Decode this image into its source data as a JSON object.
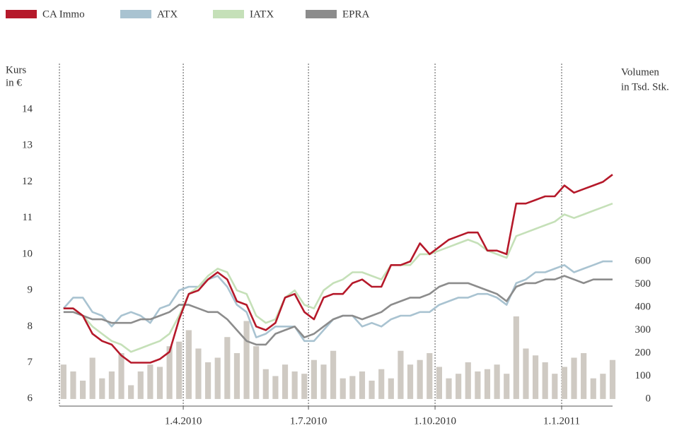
{
  "chart_data": {
    "type": "line",
    "ylabel": [
      "Kurs",
      "in €"
    ],
    "y2label": [
      "Volumen",
      "in Tsd. Stk."
    ],
    "xlim": [
      "2010-01-01",
      "2011-02-07"
    ],
    "xticks": [
      {
        "value": "2010-04-01",
        "label": "1.4.2010"
      },
      {
        "value": "2010-07-01",
        "label": "1.7.2010"
      },
      {
        "value": "2010-10-01",
        "label": "1.10.2010"
      },
      {
        "value": "2011-01-01",
        "label": "1.1.2011"
      }
    ],
    "ylim": [
      5.8,
      15.27
    ],
    "yticks": [
      6,
      7,
      8,
      9,
      10,
      11,
      12,
      13,
      14
    ],
    "y2lim": [
      -31,
      1462
    ],
    "y2ticks": [
      0,
      100,
      200,
      300,
      400,
      500,
      600
    ],
    "grid": true,
    "legend": "top-left",
    "x": [
      "2010-01-04",
      "2010-01-11",
      "2010-01-18",
      "2010-01-25",
      "2010-02-01",
      "2010-02-08",
      "2010-02-15",
      "2010-02-22",
      "2010-03-01",
      "2010-03-08",
      "2010-03-15",
      "2010-03-22",
      "2010-03-29",
      "2010-04-05",
      "2010-04-12",
      "2010-04-19",
      "2010-04-26",
      "2010-05-03",
      "2010-05-10",
      "2010-05-17",
      "2010-05-24",
      "2010-05-31",
      "2010-06-07",
      "2010-06-14",
      "2010-06-21",
      "2010-06-28",
      "2010-07-05",
      "2010-07-12",
      "2010-07-19",
      "2010-07-26",
      "2010-08-02",
      "2010-08-09",
      "2010-08-16",
      "2010-08-23",
      "2010-08-30",
      "2010-09-06",
      "2010-09-13",
      "2010-09-20",
      "2010-09-27",
      "2010-10-04",
      "2010-10-11",
      "2010-10-18",
      "2010-10-25",
      "2010-11-01",
      "2010-11-08",
      "2010-11-15",
      "2010-11-22",
      "2010-11-29",
      "2010-12-06",
      "2010-12-13",
      "2010-12-20",
      "2010-12-27",
      "2011-01-03",
      "2011-01-10",
      "2011-01-17",
      "2011-01-24",
      "2011-01-31",
      "2011-02-07"
    ],
    "series": [
      {
        "name": "Volumen",
        "type": "bar",
        "axis": "y2",
        "color": "#cfcac3",
        "values": [
          150,
          120,
          80,
          180,
          90,
          120,
          200,
          60,
          120,
          150,
          140,
          230,
          250,
          300,
          220,
          160,
          180,
          270,
          200,
          340,
          230,
          130,
          100,
          150,
          120,
          110,
          170,
          150,
          210,
          90,
          100,
          120,
          80,
          130,
          90,
          210,
          150,
          170,
          200,
          140,
          90,
          110,
          160,
          120,
          130,
          150,
          110,
          360,
          220,
          190,
          160,
          110,
          140,
          180,
          200,
          90,
          110,
          170
        ]
      },
      {
        "name": "ATX",
        "color": "#a9c3d1",
        "values": [
          8.5,
          8.8,
          8.8,
          8.4,
          8.3,
          8.0,
          8.3,
          8.4,
          8.3,
          8.1,
          8.5,
          8.6,
          9.0,
          9.1,
          9.1,
          9.3,
          9.4,
          9.1,
          8.6,
          8.4,
          7.7,
          7.8,
          8.0,
          8.0,
          8.0,
          7.6,
          7.6,
          7.9,
          8.2,
          8.3,
          8.3,
          8.0,
          8.1,
          8.0,
          8.2,
          8.3,
          8.3,
          8.4,
          8.4,
          8.6,
          8.7,
          8.8,
          8.8,
          8.9,
          8.9,
          8.8,
          8.6,
          9.2,
          9.3,
          9.5,
          9.5,
          9.6,
          9.7,
          9.5,
          9.6,
          9.7,
          9.8,
          9.8
        ]
      },
      {
        "name": "IATX",
        "color": "#c5e0b8",
        "values": [
          8.5,
          8.5,
          8.3,
          8.0,
          7.8,
          7.6,
          7.5,
          7.3,
          7.4,
          7.5,
          7.6,
          7.8,
          8.3,
          8.9,
          9.1,
          9.4,
          9.6,
          9.5,
          9.0,
          8.9,
          8.3,
          8.1,
          8.2,
          8.8,
          9.0,
          8.6,
          8.5,
          9.0,
          9.2,
          9.3,
          9.5,
          9.5,
          9.4,
          9.3,
          9.7,
          9.7,
          9.7,
          10.0,
          10.0,
          10.1,
          10.2,
          10.3,
          10.4,
          10.3,
          10.1,
          10.0,
          9.9,
          10.5,
          10.6,
          10.7,
          10.8,
          10.9,
          11.1,
          11.0,
          11.1,
          11.2,
          11.3,
          11.4
        ]
      },
      {
        "name": "EPRA",
        "color": "#8c8c8c",
        "values": [
          8.4,
          8.4,
          8.3,
          8.2,
          8.2,
          8.1,
          8.1,
          8.1,
          8.2,
          8.2,
          8.3,
          8.4,
          8.6,
          8.6,
          8.5,
          8.4,
          8.4,
          8.2,
          7.9,
          7.6,
          7.5,
          7.5,
          7.8,
          7.9,
          8.0,
          7.7,
          7.8,
          8.0,
          8.2,
          8.3,
          8.3,
          8.2,
          8.3,
          8.4,
          8.6,
          8.7,
          8.8,
          8.8,
          8.9,
          9.1,
          9.2,
          9.2,
          9.2,
          9.1,
          9.0,
          8.9,
          8.7,
          9.1,
          9.2,
          9.2,
          9.3,
          9.3,
          9.4,
          9.3,
          9.2,
          9.3,
          9.3,
          9.3
        ]
      },
      {
        "name": "CA Immo",
        "color": "#b5192a",
        "values": [
          8.5,
          8.5,
          8.3,
          7.8,
          7.6,
          7.5,
          7.2,
          7.0,
          7.0,
          7.0,
          7.1,
          7.3,
          8.2,
          8.9,
          9.0,
          9.3,
          9.5,
          9.3,
          8.7,
          8.6,
          8.0,
          7.9,
          8.1,
          8.8,
          8.9,
          8.4,
          8.2,
          8.8,
          8.9,
          8.9,
          9.2,
          9.3,
          9.1,
          9.1,
          9.7,
          9.7,
          9.8,
          10.3,
          10.0,
          10.2,
          10.4,
          10.5,
          10.6,
          10.6,
          10.1,
          10.1,
          10.0,
          11.4,
          11.4,
          11.5,
          11.6,
          11.6,
          11.9,
          11.7,
          11.8,
          11.9,
          12.0,
          12.2
        ]
      }
    ],
    "legend_order": [
      4,
      1,
      2,
      3
    ]
  }
}
